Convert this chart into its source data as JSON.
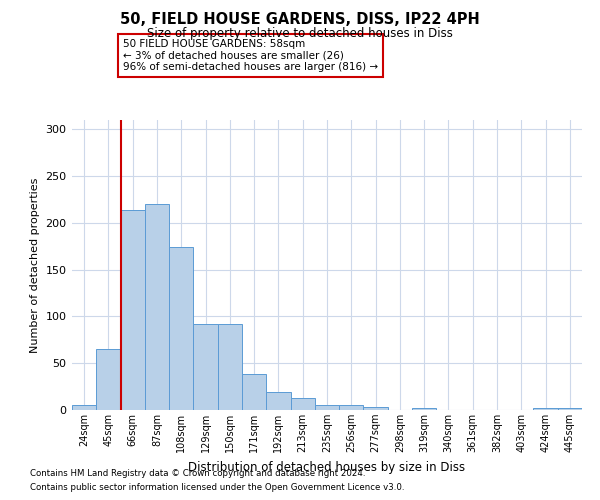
{
  "title1": "50, FIELD HOUSE GARDENS, DISS, IP22 4PH",
  "title2": "Size of property relative to detached houses in Diss",
  "xlabel": "Distribution of detached houses by size in Diss",
  "ylabel": "Number of detached properties",
  "categories": [
    "24sqm",
    "45sqm",
    "66sqm",
    "87sqm",
    "108sqm",
    "129sqm",
    "150sqm",
    "171sqm",
    "192sqm",
    "213sqm",
    "235sqm",
    "256sqm",
    "277sqm",
    "298sqm",
    "319sqm",
    "340sqm",
    "361sqm",
    "382sqm",
    "403sqm",
    "424sqm",
    "445sqm"
  ],
  "values": [
    5,
    65,
    214,
    220,
    174,
    92,
    92,
    38,
    19,
    13,
    5,
    5,
    3,
    0,
    2,
    0,
    0,
    0,
    0,
    2,
    2
  ],
  "bar_color": "#b8d0e8",
  "bar_edge_color": "#5b9bd5",
  "vline_x": 1.5,
  "vline_color": "#cc0000",
  "annotation_text": "50 FIELD HOUSE GARDENS: 58sqm\n← 3% of detached houses are smaller (26)\n96% of semi-detached houses are larger (816) →",
  "annotation_box_color": "#ffffff",
  "annotation_box_edge_color": "#cc0000",
  "footer1": "Contains HM Land Registry data © Crown copyright and database right 2024.",
  "footer2": "Contains public sector information licensed under the Open Government Licence v3.0.",
  "ylim": [
    0,
    310
  ],
  "yticks": [
    0,
    50,
    100,
    150,
    200,
    250,
    300
  ],
  "background_color": "#ffffff",
  "grid_color": "#cdd8ea"
}
